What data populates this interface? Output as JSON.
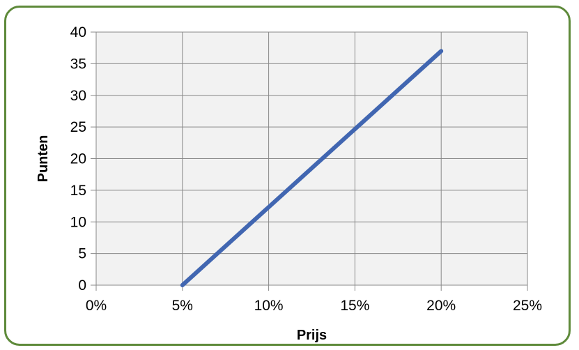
{
  "chart_data": {
    "type": "line",
    "title": "",
    "xlabel": "Prijs",
    "ylabel": "Punten",
    "xlim": [
      0,
      25
    ],
    "ylim": [
      0,
      40
    ],
    "x_ticks": [
      0,
      5,
      10,
      15,
      20,
      25
    ],
    "x_tick_labels": [
      "0%",
      "5%",
      "10%",
      "15%",
      "20%",
      "25%"
    ],
    "y_ticks": [
      0,
      5,
      10,
      15,
      20,
      25,
      30,
      35,
      40
    ],
    "y_tick_labels": [
      "0",
      "5",
      "10",
      "15",
      "20",
      "25",
      "30",
      "35",
      "40"
    ],
    "grid": true,
    "legend": "none",
    "series": [
      {
        "color": "#4166b1",
        "points": [
          {
            "x": 5,
            "y": 0
          },
          {
            "x": 20,
            "y": 37
          }
        ]
      }
    ]
  },
  "colors": {
    "frame_border": "#5e8a3a",
    "plot_background": "#f2f2f2",
    "grid": "#888888"
  }
}
